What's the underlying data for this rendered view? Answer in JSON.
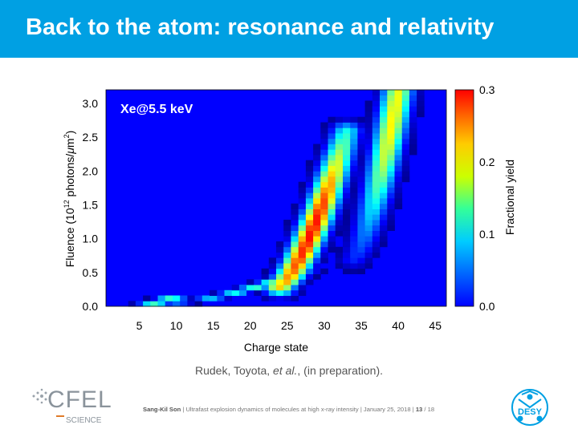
{
  "slide": {
    "title": "Back to the atom: resonance and relativity",
    "citation_authors": "Rudek, Toyota, ",
    "citation_etal": "et al.",
    "citation_rest": ", (in preparation).",
    "footer_author": "Sang-Kil Son",
    "footer_sep": " | ",
    "footer_talk": "Ultrafast explosion dynamics of molecules at high x-ray intensity",
    "footer_date": "January 25, 2018",
    "footer_page": "13",
    "footer_total": " / 18",
    "logo_left_main": "CFEL",
    "logo_left_sub": "SCIENCE",
    "logo_right": "DESY"
  },
  "colors": {
    "header": "#00a0e3",
    "background": "#ffffff"
  },
  "chart_data": {
    "type": "heatmap",
    "annotation": "Xe@5.5 keV",
    "xlabel": "Charge state",
    "ylabel_parts": [
      "Fluence (10",
      "12",
      " photons/",
      "μ",
      "m",
      "2",
      ")"
    ],
    "xticks": [
      "5",
      "10",
      "15",
      "20",
      "25",
      "30",
      "35",
      "40",
      "45"
    ],
    "yticks": [
      "0.0",
      "0.5",
      "1.0",
      "1.5",
      "2.0",
      "2.5",
      "3.0"
    ],
    "xlim": [
      0.5,
      46.5
    ],
    "ylim": [
      0.0,
      3.2
    ],
    "colorbar": {
      "label": "Fractional yield",
      "ticks": [
        "0.0",
        "0.1",
        "0.2",
        "0.3"
      ],
      "range": [
        0.0,
        0.3
      ],
      "colormap": "jet"
    },
    "ridges": [
      {
        "charge_start": 5,
        "charge_end": 10,
        "fluence_start": 0.0,
        "fluence_end": 0.15,
        "peak_yield": 0.13,
        "peak_charge": 7.5,
        "peak_fluence": 0.07
      },
      {
        "charge_start": 10,
        "charge_end": 27,
        "fluence_start": 0.05,
        "fluence_end": 0.5,
        "peak_yield": 0.15,
        "peak_charge": 26,
        "peak_fluence": 0.5
      },
      {
        "charge_start": 24,
        "charge_end": 33,
        "fluence_start": 0.3,
        "fluence_end": 2.6,
        "peak_yield": 0.26,
        "peak_charge": 32,
        "peak_fluence": 1.1
      },
      {
        "charge_start": 34,
        "charge_end": 40,
        "fluence_start": 0.7,
        "fluence_end": 3.2,
        "peak_yield": 0.19,
        "peak_charge": 38,
        "peak_fluence": 2.8
      }
    ]
  }
}
